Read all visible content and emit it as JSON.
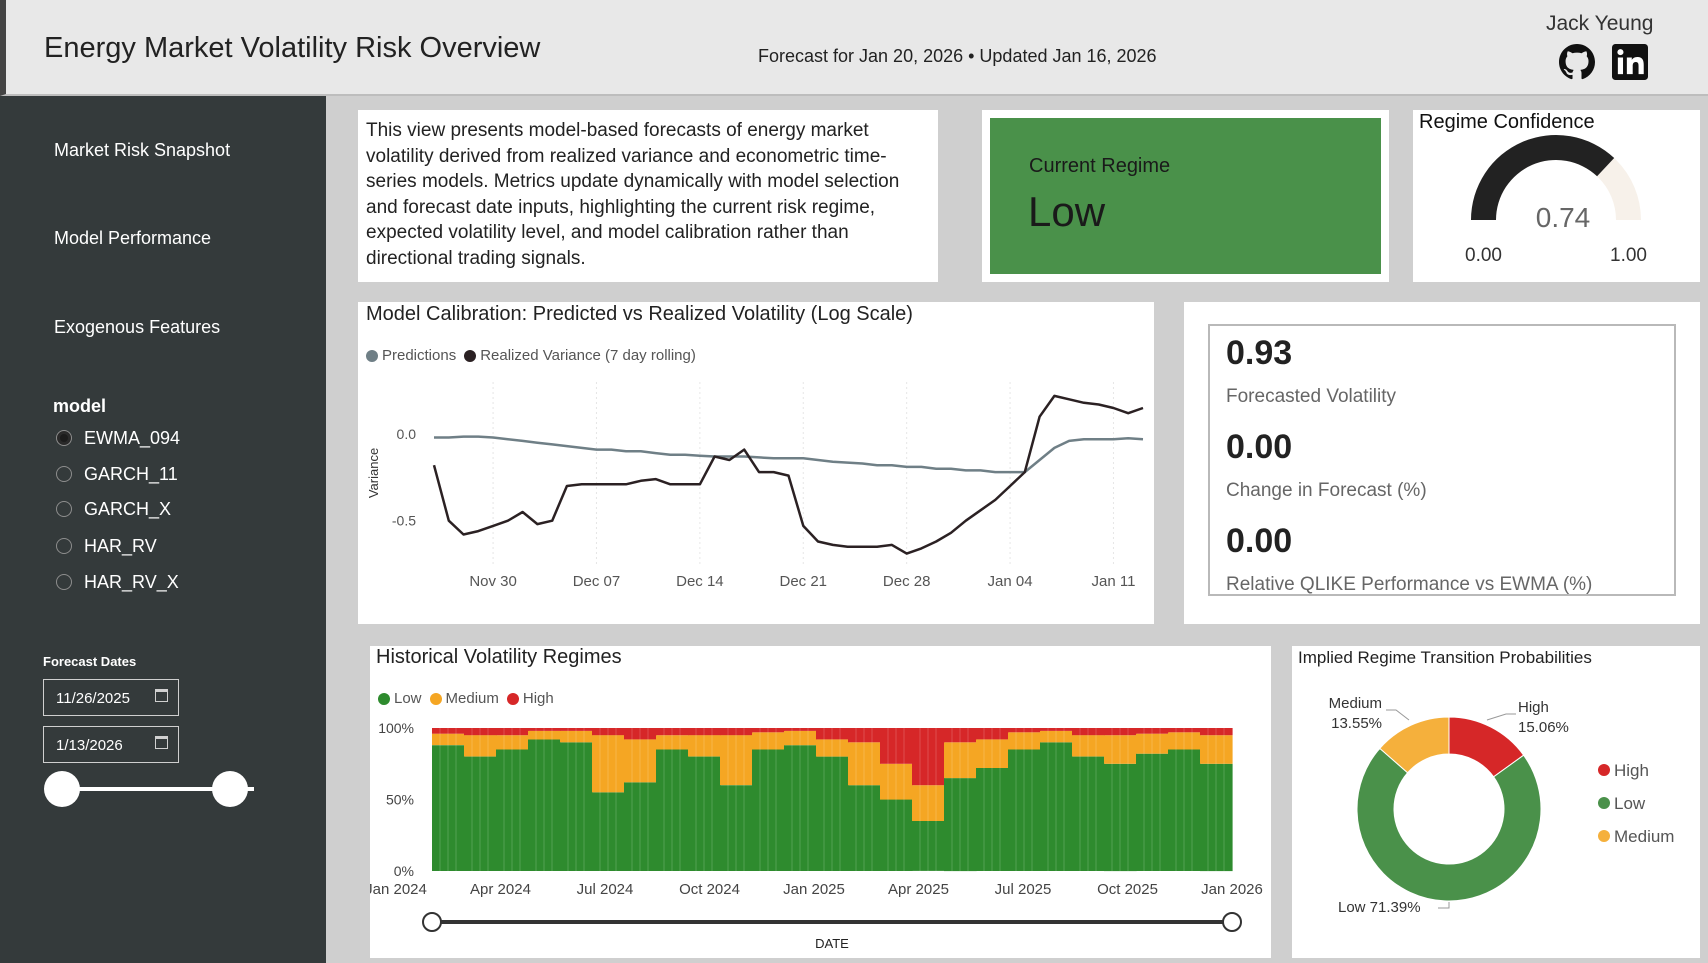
{
  "header": {
    "title": "Energy Market Volatility Risk Overview",
    "subtitle": "Forecast for Jan 20, 2026 • Updated Jan 16, 2026",
    "author": "Jack Yeung",
    "icons": [
      "github-icon",
      "linkedin-icon"
    ]
  },
  "sidebar": {
    "nav": [
      "Market Risk Snapshot",
      "Model Performance",
      "Exogenous Features"
    ],
    "model_label": "model",
    "models": [
      {
        "label": "EWMA_094",
        "selected": true
      },
      {
        "label": "GARCH_11",
        "selected": false
      },
      {
        "label": "GARCH_X",
        "selected": false
      },
      {
        "label": "HAR_RV",
        "selected": false
      },
      {
        "label": "HAR_RV_X",
        "selected": false
      }
    ],
    "forecast_dates_label": "Forecast Dates",
    "date_start": "11/26/2025",
    "date_end": "1/13/2026"
  },
  "description": "This view presents model-based forecasts of energy market volatility derived from realized variance and econometric time-series models. Metrics update dynamically with model selection and forecast date inputs, highlighting the current risk regime, expected volatility level, and model calibration rather than directional trading signals.",
  "regime": {
    "label": "Current Regime",
    "value": "Low",
    "color": "#4a914a"
  },
  "confidence": {
    "title": "Regime Confidence",
    "value": 0.74,
    "value_text": "0.74",
    "min": "0.00",
    "max": "1.00"
  },
  "kpis": [
    {
      "value": "0.93",
      "label": "Forecasted Volatility"
    },
    {
      "value": "0.00",
      "label": "Change in Forecast (%)"
    },
    {
      "value": "0.00",
      "label": "Relative QLIKE Performance vs EWMA (%)"
    }
  ],
  "colors": {
    "low": "#2e8b2e",
    "medium": "#f5a623",
    "high": "#d62728",
    "predictions": "#6f7f86",
    "realized": "#2b2123"
  },
  "chart_data": [
    {
      "type": "line",
      "title": "Model Calibration: Predicted vs Realized Volatility (Log Scale)",
      "ylabel": "Variance",
      "xlabel": "",
      "x_ticks": [
        "Nov 30",
        "Dec 07",
        "Dec 14",
        "Dec 21",
        "Dec 28",
        "Jan 04",
        "Jan 11"
      ],
      "y_ticks": [
        "0.0",
        "-0.5"
      ],
      "ylim": [
        -0.75,
        0.3
      ],
      "x_dates": [
        "Nov 26",
        "Nov 27",
        "Nov 28",
        "Nov 29",
        "Nov 30",
        "Dec 01",
        "Dec 02",
        "Dec 03",
        "Dec 04",
        "Dec 05",
        "Dec 06",
        "Dec 07",
        "Dec 08",
        "Dec 09",
        "Dec 10",
        "Dec 11",
        "Dec 12",
        "Dec 13",
        "Dec 14",
        "Dec 15",
        "Dec 16",
        "Dec 17",
        "Dec 18",
        "Dec 19",
        "Dec 20",
        "Dec 21",
        "Dec 22",
        "Dec 23",
        "Dec 24",
        "Dec 25",
        "Dec 26",
        "Dec 27",
        "Dec 28",
        "Dec 29",
        "Dec 30",
        "Dec 31",
        "Jan 01",
        "Jan 02",
        "Jan 03",
        "Jan 04",
        "Jan 05",
        "Jan 06",
        "Jan 07",
        "Jan 08",
        "Jan 09",
        "Jan 10",
        "Jan 11",
        "Jan 12",
        "Jan 13"
      ],
      "series": [
        {
          "name": "Predictions",
          "values": [
            -0.02,
            -0.02,
            -0.015,
            -0.015,
            -0.02,
            -0.03,
            -0.04,
            -0.05,
            -0.06,
            -0.07,
            -0.08,
            -0.09,
            -0.09,
            -0.1,
            -0.1,
            -0.11,
            -0.12,
            -0.12,
            -0.125,
            -0.13,
            -0.13,
            -0.13,
            -0.135,
            -0.14,
            -0.14,
            -0.14,
            -0.15,
            -0.16,
            -0.165,
            -0.17,
            -0.18,
            -0.18,
            -0.19,
            -0.19,
            -0.2,
            -0.2,
            -0.21,
            -0.21,
            -0.22,
            -0.22,
            -0.22,
            -0.15,
            -0.08,
            -0.04,
            -0.03,
            -0.03,
            -0.03,
            -0.025,
            -0.03
          ]
        },
        {
          "name": "Realized Variance (7 day rolling)",
          "values": [
            -0.18,
            -0.5,
            -0.58,
            -0.56,
            -0.53,
            -0.5,
            -0.45,
            -0.52,
            -0.5,
            -0.3,
            -0.29,
            -0.29,
            -0.29,
            -0.29,
            -0.27,
            -0.26,
            -0.29,
            -0.29,
            -0.29,
            -0.13,
            -0.15,
            -0.09,
            -0.22,
            -0.22,
            -0.24,
            -0.53,
            -0.62,
            -0.64,
            -0.65,
            -0.65,
            -0.65,
            -0.64,
            -0.69,
            -0.66,
            -0.62,
            -0.57,
            -0.5,
            -0.44,
            -0.38,
            -0.3,
            -0.22,
            0.1,
            0.22,
            0.2,
            0.18,
            0.17,
            0.15,
            0.12,
            0.15
          ]
        }
      ]
    },
    {
      "type": "area",
      "title": "Historical Volatility Regimes",
      "xlabel": "DATE",
      "stacked": "100%",
      "x_ticks": [
        "Jan 2024",
        "Apr 2024",
        "Jul 2024",
        "Oct 2024",
        "Jan 2025",
        "Apr 2025",
        "Jul 2025",
        "Oct 2025",
        "Jan 2026"
      ],
      "y_ticks": [
        "100%",
        "50%",
        "0%"
      ],
      "legend": [
        "Low",
        "Medium",
        "High"
      ],
      "x_months": [
        "Jan 2024",
        "Feb 2024",
        "Mar 2024",
        "Apr 2024",
        "May 2024",
        "Jun 2024",
        "Jul 2024",
        "Aug 2024",
        "Sep 2024",
        "Oct 2024",
        "Nov 2024",
        "Dec 2024",
        "Jan 2025",
        "Feb 2025",
        "Mar 2025",
        "Apr 2025",
        "May 2025",
        "Jun 2025",
        "Jul 2025",
        "Aug 2025",
        "Sep 2025",
        "Oct 2025",
        "Nov 2025",
        "Dec 2025",
        "Jan 2026"
      ],
      "series": [
        {
          "name": "Low",
          "values": [
            0.88,
            0.8,
            0.85,
            0.92,
            0.9,
            0.55,
            0.62,
            0.85,
            0.8,
            0.6,
            0.85,
            0.88,
            0.8,
            0.6,
            0.5,
            0.35,
            0.65,
            0.72,
            0.85,
            0.9,
            0.8,
            0.75,
            0.82,
            0.85,
            0.75
          ]
        },
        {
          "name": "Medium",
          "values": [
            0.08,
            0.15,
            0.1,
            0.06,
            0.08,
            0.4,
            0.3,
            0.1,
            0.15,
            0.35,
            0.12,
            0.1,
            0.12,
            0.3,
            0.25,
            0.25,
            0.25,
            0.2,
            0.12,
            0.08,
            0.15,
            0.2,
            0.14,
            0.12,
            0.2
          ]
        },
        {
          "name": "High",
          "values": [
            0.04,
            0.05,
            0.05,
            0.02,
            0.02,
            0.05,
            0.08,
            0.05,
            0.05,
            0.05,
            0.03,
            0.02,
            0.08,
            0.1,
            0.25,
            0.4,
            0.1,
            0.08,
            0.03,
            0.02,
            0.05,
            0.05,
            0.04,
            0.03,
            0.05
          ]
        }
      ]
    },
    {
      "type": "pie",
      "title": "Implied Regime Transition Probabilities",
      "donut": true,
      "slices": [
        {
          "name": "High",
          "value": 15.06,
          "label": "High",
          "pct": "15.06%"
        },
        {
          "name": "Low",
          "value": 71.39,
          "label": "Low",
          "pct": "71.39%"
        },
        {
          "name": "Medium",
          "value": 13.55,
          "label": "Medium",
          "pct": "13.55%"
        }
      ],
      "legend": [
        "High",
        "Low",
        "Medium"
      ],
      "legend_position": "right"
    }
  ]
}
